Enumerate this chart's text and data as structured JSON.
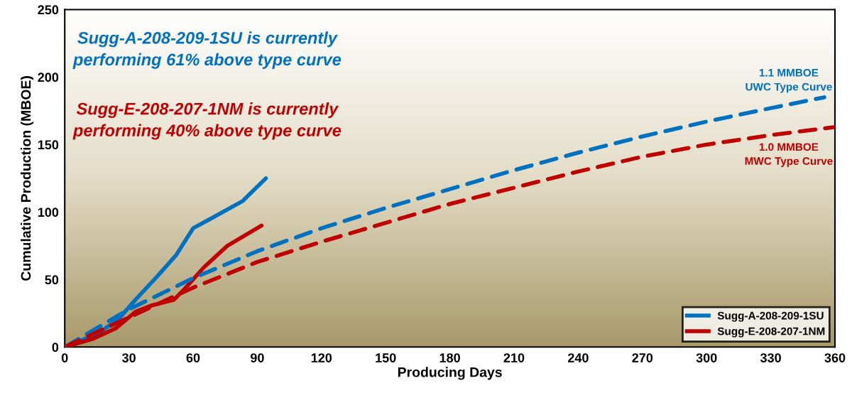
{
  "chart_data": {
    "type": "line",
    "xlabel": "Producing Days",
    "ylabel": "Cumulative Production (MBOE)",
    "xlim": [
      0,
      360
    ],
    "xticks": [
      0,
      30,
      60,
      90,
      120,
      150,
      180,
      210,
      240,
      270,
      300,
      330,
      360
    ],
    "ylim": [
      0,
      250
    ],
    "yticks": [
      0,
      50,
      100,
      150,
      200,
      250
    ],
    "grid": false,
    "legend": "bottom right",
    "series": [
      {
        "name": "Sugg-A-208-209-1SU",
        "color": "#0070c0",
        "line_style": "solid",
        "x": [
          0,
          15.5,
          25,
          33,
          43,
          52,
          60,
          67,
          83,
          94
        ],
        "values": [
          0,
          10,
          20.5,
          35,
          52,
          68,
          88,
          94,
          108,
          125
        ]
      },
      {
        "name": "Sugg-E-208-207-1NM",
        "color": "#c00000",
        "line_style": "solid",
        "x": [
          0,
          13,
          24,
          33,
          41,
          51,
          56,
          65,
          76,
          92
        ],
        "values": [
          0,
          6,
          14,
          26,
          31,
          35,
          43,
          59,
          75,
          90
        ]
      },
      {
        "color": "#0070c0",
        "line_style": "dashed",
        "x": [
          0,
          30,
          60,
          90,
          120,
          150,
          180,
          210,
          240,
          270,
          300,
          330,
          355
        ],
        "values": [
          0,
          28,
          51,
          71,
          88,
          103,
          117,
          131,
          144,
          156,
          167,
          177,
          185
        ]
      },
      {
        "color": "#c00000",
        "line_style": "dashed",
        "x": [
          0,
          30,
          60,
          90,
          120,
          150,
          180,
          210,
          240,
          270,
          300,
          330,
          360
        ],
        "values": [
          0,
          22,
          44,
          63,
          78,
          92,
          106,
          118,
          130,
          141,
          150,
          157,
          163
        ]
      }
    ],
    "annotations": [
      "Sugg-A-208-209-1SU is currently\nperforming 61% above type curve",
      "Sugg-E-208-207-1NM is currently\nperforming 40% above type curve",
      "1.1 MMBOE\nUWC Type Curve",
      "1.0 MMBOE\nMWC Type Curve"
    ]
  }
}
